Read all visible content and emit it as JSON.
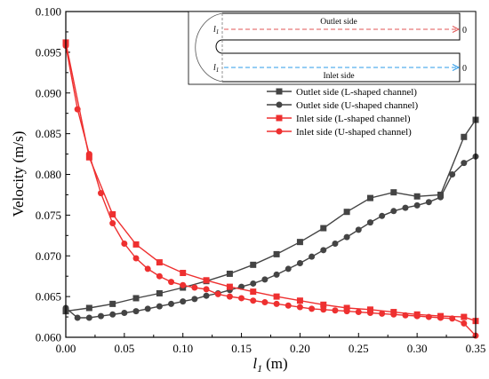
{
  "chart_data": {
    "type": "line",
    "xlabel_main": "l",
    "xlabel_sub": "1",
    "xlabel_unit": "(m)",
    "ylabel": "Velocity (m/s)",
    "xlim": [
      0,
      0.35
    ],
    "ylim": [
      0.06,
      0.1
    ],
    "xticks": [
      "0.00",
      "0.05",
      "0.10",
      "0.15",
      "0.20",
      "0.25",
      "0.30",
      "0.35"
    ],
    "yticks": [
      "0.060",
      "0.065",
      "0.070",
      "0.075",
      "0.080",
      "0.085",
      "0.090",
      "0.095",
      "0.100"
    ],
    "legend_position": "right",
    "series": [
      {
        "name": "Outlet side (L-shaped channel)",
        "color": "#444444",
        "marker": "square",
        "x": [
          0.0,
          0.02,
          0.04,
          0.06,
          0.08,
          0.1,
          0.12,
          0.14,
          0.16,
          0.18,
          0.2,
          0.22,
          0.24,
          0.26,
          0.28,
          0.3,
          0.32,
          0.34,
          0.35
        ],
        "y": [
          0.0632,
          0.0636,
          0.0641,
          0.0648,
          0.0654,
          0.0661,
          0.0669,
          0.0678,
          0.0689,
          0.0702,
          0.0717,
          0.0734,
          0.0754,
          0.0771,
          0.0778,
          0.0773,
          0.0775,
          0.0846,
          0.0867
        ]
      },
      {
        "name": "Outlet side (U-shaped channel)",
        "color": "#444444",
        "marker": "circle",
        "x": [
          0.0,
          0.01,
          0.02,
          0.03,
          0.04,
          0.05,
          0.06,
          0.07,
          0.08,
          0.09,
          0.1,
          0.11,
          0.12,
          0.13,
          0.14,
          0.15,
          0.16,
          0.17,
          0.18,
          0.19,
          0.2,
          0.21,
          0.22,
          0.23,
          0.24,
          0.25,
          0.26,
          0.27,
          0.28,
          0.29,
          0.3,
          0.31,
          0.32,
          0.33,
          0.34,
          0.35
        ],
        "y": [
          0.0636,
          0.0624,
          0.0624,
          0.0626,
          0.0628,
          0.063,
          0.0632,
          0.0635,
          0.0638,
          0.0641,
          0.0644,
          0.0647,
          0.0651,
          0.0654,
          0.0658,
          0.0662,
          0.0666,
          0.0671,
          0.0677,
          0.0684,
          0.0691,
          0.0699,
          0.0707,
          0.0715,
          0.0723,
          0.0732,
          0.0741,
          0.0749,
          0.0755,
          0.0759,
          0.0762,
          0.0766,
          0.0772,
          0.08,
          0.0814,
          0.0822
        ]
      },
      {
        "name": "Inlet side (L-shaped channel)",
        "color": "#ee3030",
        "marker": "square",
        "x": [
          0.0,
          0.02,
          0.04,
          0.06,
          0.08,
          0.1,
          0.12,
          0.14,
          0.16,
          0.18,
          0.2,
          0.22,
          0.24,
          0.26,
          0.28,
          0.3,
          0.32,
          0.34,
          0.35
        ],
        "y": [
          0.0962,
          0.0821,
          0.0751,
          0.0714,
          0.0692,
          0.0679,
          0.067,
          0.0662,
          0.0656,
          0.065,
          0.0645,
          0.064,
          0.0636,
          0.0634,
          0.0631,
          0.0628,
          0.0626,
          0.0625,
          0.062
        ]
      },
      {
        "name": "Inlet side (U-shaped channel)",
        "color": "#ee3030",
        "marker": "circle",
        "x": [
          0.0,
          0.01,
          0.02,
          0.03,
          0.04,
          0.05,
          0.06,
          0.07,
          0.08,
          0.09,
          0.1,
          0.11,
          0.12,
          0.13,
          0.14,
          0.15,
          0.16,
          0.17,
          0.18,
          0.19,
          0.2,
          0.21,
          0.22,
          0.23,
          0.24,
          0.25,
          0.26,
          0.27,
          0.28,
          0.29,
          0.3,
          0.31,
          0.32,
          0.33,
          0.34,
          0.35
        ],
        "y": [
          0.0958,
          0.088,
          0.0825,
          0.0777,
          0.074,
          0.0715,
          0.0697,
          0.0684,
          0.0675,
          0.0668,
          0.0664,
          0.0661,
          0.0659,
          0.0653,
          0.065,
          0.0648,
          0.0645,
          0.0643,
          0.0641,
          0.0639,
          0.0637,
          0.0635,
          0.0634,
          0.0633,
          0.0632,
          0.0631,
          0.063,
          0.0629,
          0.0628,
          0.0627,
          0.0626,
          0.0625,
          0.0624,
          0.0623,
          0.0617,
          0.0602
        ]
      }
    ]
  },
  "inset": {
    "outlet_label": "Outlet side",
    "inlet_label": "Inlet side",
    "l_main": "l",
    "l_sub": "1",
    "zero_label": "0",
    "outlet_color": "#e05555",
    "inlet_color": "#2e9be8"
  }
}
